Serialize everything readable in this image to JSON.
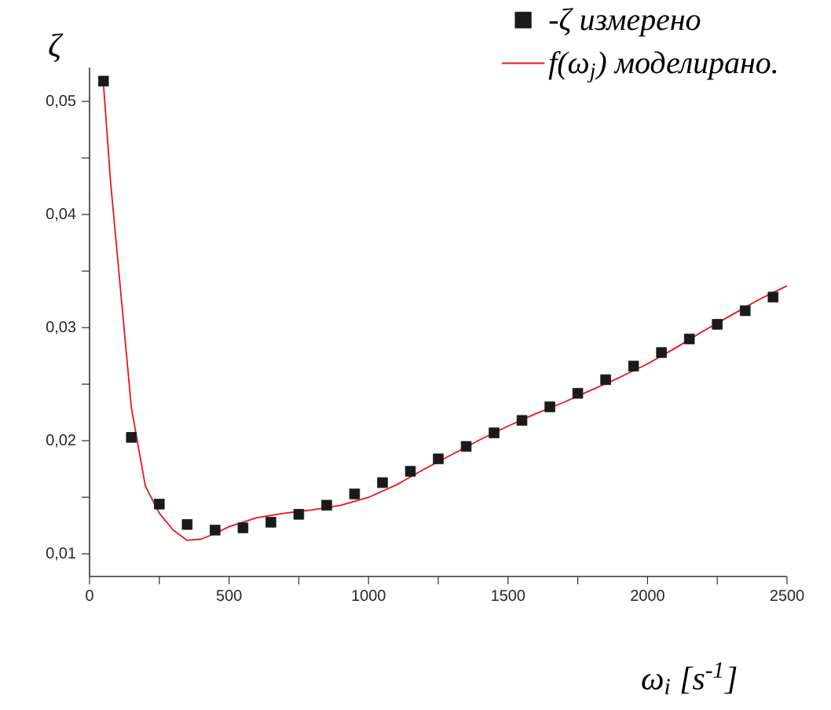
{
  "chart_data": {
    "type": "scatter",
    "xlabel": "ω$_{i}$ [s$^{-1}$]",
    "ylabel": "ζ",
    "xlim": [
      0,
      2500
    ],
    "ylim": [
      0.008,
      0.053
    ],
    "xticks": [
      0,
      {
        "value": 250,
        "label": null
      },
      500,
      {
        "value": 750,
        "label": null
      },
      1000,
      {
        "value": 1250,
        "label": null
      },
      1500,
      {
        "value": 1750,
        "label": null
      },
      2000,
      {
        "value": 2250,
        "label": null
      },
      2500
    ],
    "yticks": [
      {
        "value": 0.01,
        "label": "0,01"
      },
      {
        "value": 0.015,
        "label": null
      },
      {
        "value": 0.02,
        "label": "0,02"
      },
      {
        "value": 0.025,
        "label": null
      },
      {
        "value": 0.03,
        "label": "0,03"
      },
      {
        "value": 0.035,
        "label": null
      },
      {
        "value": 0.04,
        "label": "0,04"
      },
      {
        "value": 0.045,
        "label": null
      },
      {
        "value": 0.05,
        "label": "0,05"
      }
    ],
    "grid": false,
    "legend": "top right",
    "series": [
      {
        "name": "-ζ измерено",
        "marker": "square",
        "color": "#1a1a1a",
        "x": [
          50,
          150,
          250,
          350,
          450,
          550,
          650,
          750,
          850,
          950,
          1050,
          1150,
          1250,
          1350,
          1450,
          1550,
          1650,
          1750,
          1850,
          1950,
          2050,
          2150,
          2250,
          2350,
          2450
        ],
        "values": [
          0.0518,
          0.0203,
          0.0144,
          0.0126,
          0.0121,
          0.0123,
          0.0128,
          0.0135,
          0.0143,
          0.0153,
          0.0163,
          0.0173,
          0.0184,
          0.0195,
          0.0207,
          0.0218,
          0.023,
          0.0242,
          0.0254,
          0.0266,
          0.0278,
          0.029,
          0.0303,
          0.0315,
          0.0327
        ]
      },
      {
        "name": "f(ω$_{j}$) моделирано.",
        "type": "line",
        "marker": "none",
        "line_style": "solid",
        "color": "#e8141c",
        "x": [
          50,
          75,
          100,
          150,
          200,
          250,
          300,
          350,
          400,
          450,
          500,
          600,
          700,
          800,
          900,
          1000,
          1100,
          1200,
          1300,
          1400,
          1500,
          1600,
          1700,
          1800,
          1900,
          2000,
          2100,
          2200,
          2300,
          2400,
          2500
        ],
        "values": [
          0.0515,
          0.043,
          0.0363,
          0.0229,
          0.016,
          0.0136,
          0.0121,
          0.0112,
          0.0113,
          0.0118,
          0.0124,
          0.0132,
          0.0136,
          0.0139,
          0.0143,
          0.015,
          0.0161,
          0.0175,
          0.0188,
          0.0201,
          0.0213,
          0.0224,
          0.0234,
          0.0245,
          0.0256,
          0.0268,
          0.0282,
          0.0297,
          0.0311,
          0.0325,
          0.0337
        ]
      }
    ]
  }
}
